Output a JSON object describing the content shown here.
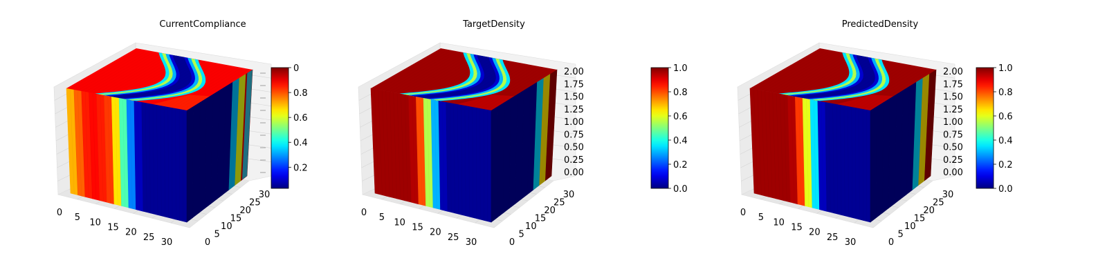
{
  "chart_data": [
    {
      "type": "heatmap",
      "subtype": "3d-voxel-density",
      "title": "CurrentCompliance",
      "x_ticks": [
        "0",
        "5",
        "10",
        "15",
        "20",
        "25",
        "30"
      ],
      "y_ticks": [
        "0",
        "5",
        "10",
        "15",
        "20",
        "25",
        "30"
      ],
      "xlim": [
        0,
        32
      ],
      "ylim": [
        0,
        32
      ],
      "z_ticks": [],
      "colorbar": {
        "range": [
          0.03,
          1.0
        ],
        "ticks": [
          "0.2",
          "0.4",
          "0.6",
          "0.8",
          "0"
        ],
        "overlapping_z_ticks_visible": true
      },
      "colormap": "jet",
      "front_profile": [
        0.7,
        0.78,
        0.85,
        0.87,
        0.85,
        0.82,
        0.65,
        0.45,
        0.25,
        0.06,
        0.02,
        0.02,
        0.02,
        0.02,
        0.02,
        0.02
      ]
    },
    {
      "type": "heatmap",
      "subtype": "3d-voxel-density",
      "title": "TargetDensity",
      "x_ticks": [
        "0",
        "5",
        "10",
        "15",
        "20",
        "25",
        "30"
      ],
      "y_ticks": [
        "0",
        "5",
        "10",
        "15",
        "20",
        "25",
        "30"
      ],
      "xlim": [
        0,
        32
      ],
      "ylim": [
        0,
        32
      ],
      "z_ticks": [
        "0.00",
        "0.25",
        "0.50",
        "0.75",
        "1.00",
        "1.25",
        "1.50",
        "1.75",
        "2.00"
      ],
      "zlim": [
        0,
        2
      ],
      "colorbar": {
        "range": [
          0,
          1
        ],
        "ticks": [
          "0.0",
          "0.2",
          "0.4",
          "0.6",
          "0.8",
          "1.0"
        ]
      },
      "colormap": "jet",
      "front_profile": [
        0.97,
        0.97,
        0.97,
        0.97,
        0.97,
        0.95,
        0.8,
        0.55,
        0.3,
        0.05,
        0.02,
        0.02,
        0.02,
        0.02,
        0.02,
        0.02
      ]
    },
    {
      "type": "heatmap",
      "subtype": "3d-voxel-density",
      "title": "PredictedDensity",
      "x_ticks": [
        "0",
        "5",
        "10",
        "15",
        "20",
        "25",
        "30"
      ],
      "y_ticks": [
        "0",
        "5",
        "10",
        "15",
        "20",
        "25",
        "30"
      ],
      "xlim": [
        0,
        32
      ],
      "ylim": [
        0,
        32
      ],
      "z_ticks": [
        "0.00",
        "0.25",
        "0.50",
        "0.75",
        "1.00",
        "1.25",
        "1.50",
        "1.75",
        "2.00"
      ],
      "zlim": [
        0,
        2
      ],
      "colorbar": {
        "range": [
          0,
          1
        ],
        "ticks": [
          "0.0",
          "0.2",
          "0.4",
          "0.6",
          "0.8",
          "1.0"
        ]
      },
      "colormap": "jet",
      "front_profile": [
        0.97,
        0.97,
        0.97,
        0.97,
        0.97,
        0.95,
        0.82,
        0.6,
        0.35,
        0.06,
        0.02,
        0.02,
        0.02,
        0.02,
        0.02,
        0.02
      ]
    }
  ]
}
